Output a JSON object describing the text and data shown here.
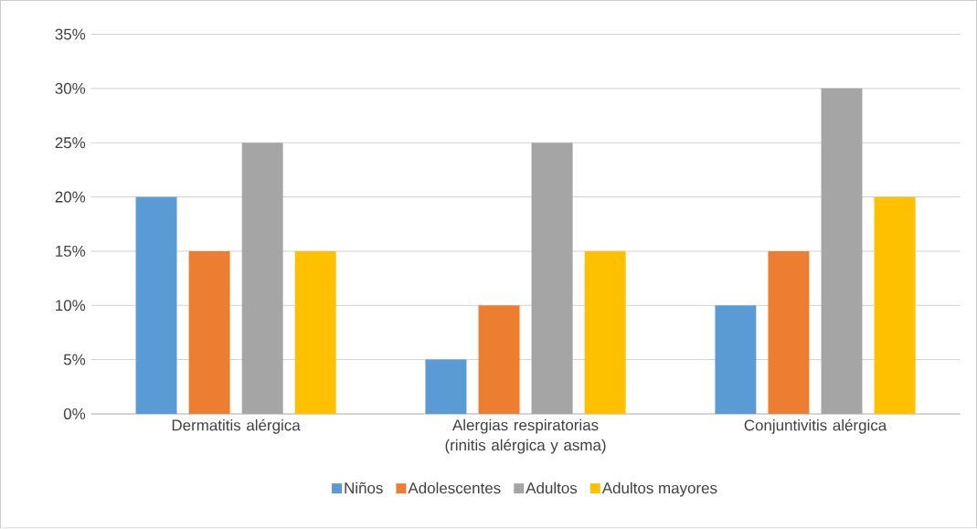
{
  "chart_data": {
    "type": "bar",
    "categories": [
      "Dermatitis alérgica",
      "Alergias respiratorias (rinitis alérgica y asma)",
      "Conjuntivitis alérgica"
    ],
    "series": [
      {
        "name": "Niños",
        "color": "#5b9bd5",
        "values": [
          20,
          5,
          10
        ]
      },
      {
        "name": "Adolescentes",
        "color": "#ed7d31",
        "values": [
          15,
          10,
          15
        ]
      },
      {
        "name": "Adultos",
        "color": "#a5a5a5",
        "values": [
          25,
          25,
          30
        ]
      },
      {
        "name": "Adultos mayores",
        "color": "#ffc000",
        "values": [
          15,
          15,
          20
        ]
      }
    ],
    "ylim": [
      0,
      35
    ],
    "yticks": [
      {
        "value": 0,
        "label": "0%"
      },
      {
        "value": 5,
        "label": "5%"
      },
      {
        "value": 10,
        "label": "10%"
      },
      {
        "value": 15,
        "label": "15%"
      },
      {
        "value": 20,
        "label": "20%"
      },
      {
        "value": 25,
        "label": "25%"
      },
      {
        "value": 30,
        "label": "30%"
      },
      {
        "value": 35,
        "label": "35%"
      }
    ],
    "grid": "y",
    "legend": "bottom"
  }
}
